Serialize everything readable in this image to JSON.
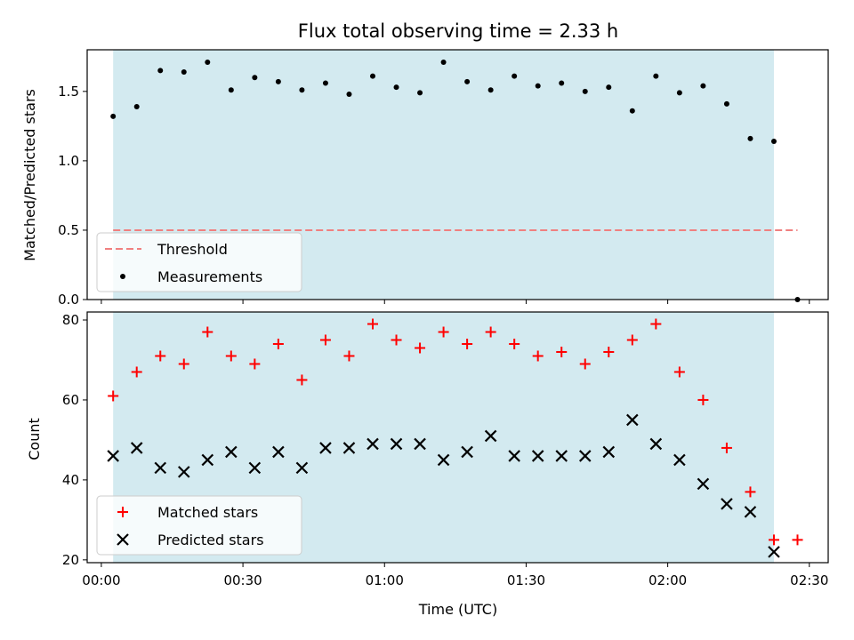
{
  "chart_data": [
    {
      "id": "top",
      "type": "scatter",
      "title": "Flux total observing time = 2.33 h",
      "xlabel": "",
      "ylabel": "Matched/Predicted stars",
      "xlim": [
        "23:57",
        "02:34"
      ],
      "ylim": [
        0,
        1.8
      ],
      "yticks": [
        0.0,
        0.5,
        1.0,
        1.5
      ],
      "ytick_labels": [
        "0.0",
        "0.5",
        "1.0",
        "1.5"
      ],
      "xticks": [
        "00:00",
        "00:30",
        "01:00",
        "01:30",
        "02:00",
        "02:30"
      ],
      "shaded_interval": [
        "00:02:30",
        "02:22:30"
      ],
      "shade_color": "#d3eaf0",
      "legend_position": "lower-left",
      "series": [
        {
          "name": "Threshold",
          "kind": "dashed-line",
          "color": "#f08080",
          "x": [
            "00:02:30",
            "02:27:30"
          ],
          "y": [
            0.5,
            0.5
          ]
        },
        {
          "name": "Measurements",
          "kind": "dot",
          "color": "#000000",
          "x": [
            "00:02:30",
            "00:07:30",
            "00:12:30",
            "00:17:30",
            "00:22:30",
            "00:27:30",
            "00:32:30",
            "00:37:30",
            "00:42:30",
            "00:47:30",
            "00:52:30",
            "00:57:30",
            "01:02:30",
            "01:07:30",
            "01:12:30",
            "01:17:30",
            "01:22:30",
            "01:27:30",
            "01:32:30",
            "01:37:30",
            "01:42:30",
            "01:47:30",
            "01:52:30",
            "01:57:30",
            "02:02:30",
            "02:07:30",
            "02:12:30",
            "02:17:30",
            "02:22:30",
            "02:27:30"
          ],
          "y": [
            1.32,
            1.39,
            1.65,
            1.64,
            1.71,
            1.51,
            1.6,
            1.57,
            1.51,
            1.56,
            1.48,
            1.61,
            1.53,
            1.49,
            1.71,
            1.57,
            1.51,
            1.61,
            1.54,
            1.56,
            1.5,
            1.53,
            1.36,
            1.61,
            1.49,
            1.54,
            1.41,
            1.16,
            1.14,
            0.0
          ]
        }
      ]
    },
    {
      "id": "bottom",
      "type": "scatter",
      "title": "",
      "xlabel": "Time (UTC)",
      "ylabel": "Count",
      "xlim": [
        "23:57",
        "02:34"
      ],
      "ylim": [
        19.3,
        82
      ],
      "yticks": [
        20,
        40,
        60,
        80
      ],
      "ytick_labels": [
        "20",
        "40",
        "60",
        "80"
      ],
      "xticks": [
        "00:00",
        "00:30",
        "01:00",
        "01:30",
        "02:00",
        "02:30"
      ],
      "xtick_labels": [
        "00:00",
        "00:30",
        "01:00",
        "01:30",
        "02:00",
        "02:30"
      ],
      "shaded_interval": [
        "00:02:30",
        "02:22:30"
      ],
      "shade_color": "#d3eaf0",
      "legend_position": "lower-left",
      "series": [
        {
          "name": "Matched stars",
          "kind": "plus",
          "color": "#ff0000",
          "x": [
            "00:02:30",
            "00:07:30",
            "00:12:30",
            "00:17:30",
            "00:22:30",
            "00:27:30",
            "00:32:30",
            "00:37:30",
            "00:42:30",
            "00:47:30",
            "00:52:30",
            "00:57:30",
            "01:02:30",
            "01:07:30",
            "01:12:30",
            "01:17:30",
            "01:22:30",
            "01:27:30",
            "01:32:30",
            "01:37:30",
            "01:42:30",
            "01:47:30",
            "01:52:30",
            "01:57:30",
            "02:02:30",
            "02:07:30",
            "02:12:30",
            "02:17:30",
            "02:22:30",
            "02:27:30"
          ],
          "y": [
            61,
            67,
            71,
            69,
            77,
            71,
            69,
            74,
            65,
            75,
            71,
            79,
            75,
            73,
            77,
            74,
            77,
            74,
            71,
            72,
            69,
            72,
            75,
            79,
            67,
            60,
            48,
            37,
            25,
            25
          ]
        },
        {
          "name": "Predicted stars",
          "kind": "cross",
          "color": "#000000",
          "x": [
            "00:02:30",
            "00:07:30",
            "00:12:30",
            "00:17:30",
            "00:22:30",
            "00:27:30",
            "00:32:30",
            "00:37:30",
            "00:42:30",
            "00:47:30",
            "00:52:30",
            "00:57:30",
            "01:02:30",
            "01:07:30",
            "01:12:30",
            "01:17:30",
            "01:22:30",
            "01:27:30",
            "01:32:30",
            "01:37:30",
            "01:42:30",
            "01:47:30",
            "01:52:30",
            "01:57:30",
            "02:02:30",
            "02:07:30",
            "02:12:30",
            "02:17:30",
            "02:22:30"
          ],
          "y": [
            46,
            48,
            43,
            42,
            45,
            47,
            43,
            47,
            43,
            48,
            48,
            49,
            49,
            49,
            45,
            47,
            51,
            46,
            46,
            46,
            46,
            47,
            55,
            49,
            45,
            39,
            34,
            32,
            22
          ]
        }
      ]
    }
  ]
}
